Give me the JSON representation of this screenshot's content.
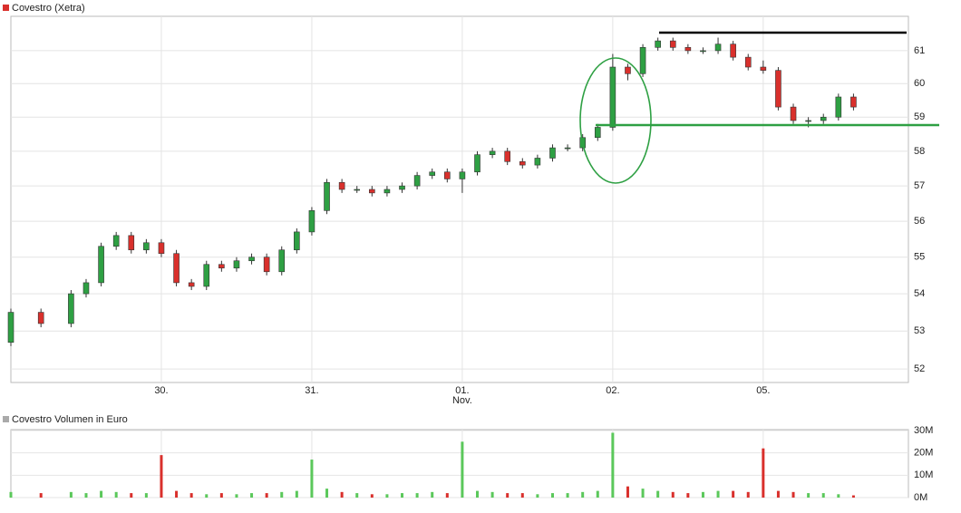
{
  "chart_data": [
    {
      "type": "candlestick",
      "title": "Covestro (Xetra)",
      "legend_color": "#d9302c",
      "up_color": "#2ea043",
      "down_color": "#d9302c",
      "log": true,
      "grid": true,
      "x": [
        0,
        4,
        8,
        10,
        12,
        14,
        16,
        18,
        20,
        22,
        24,
        26,
        28,
        30,
        32,
        34,
        36,
        38,
        40,
        42,
        44,
        46,
        48,
        50,
        52,
        54,
        56,
        58,
        60,
        62,
        64,
        66,
        68,
        70,
        72,
        74,
        76,
        78,
        80,
        82,
        84,
        86,
        88,
        90,
        92,
        94,
        96,
        98,
        100,
        102,
        104,
        106,
        108,
        110,
        112
      ],
      "open": [
        52.7,
        53.5,
        53.2,
        54.0,
        54.3,
        55.3,
        55.6,
        55.2,
        55.4,
        55.1,
        54.3,
        54.2,
        54.8,
        54.7,
        54.9,
        55.0,
        54.6,
        55.2,
        55.7,
        56.3,
        57.1,
        56.9,
        56.9,
        56.8,
        56.9,
        57.0,
        57.3,
        57.4,
        57.2,
        57.4,
        57.9,
        58.0,
        57.7,
        57.6,
        57.8,
        58.1,
        58.1,
        58.4,
        58.7,
        60.5,
        60.3,
        61.1,
        61.3,
        61.1,
        61.0,
        61.0,
        61.2,
        60.8,
        60.5,
        60.4,
        59.3,
        58.9,
        58.9,
        59.0,
        59.6
      ],
      "high": [
        53.6,
        53.6,
        54.1,
        54.4,
        55.4,
        55.7,
        55.7,
        55.5,
        55.5,
        55.2,
        54.4,
        54.9,
        54.9,
        55.0,
        55.1,
        55.1,
        55.3,
        55.8,
        56.4,
        57.2,
        57.2,
        57.0,
        57.0,
        57.0,
        57.1,
        57.4,
        57.5,
        57.5,
        57.5,
        58.0,
        58.1,
        58.1,
        57.8,
        57.9,
        58.2,
        58.2,
        58.5,
        58.8,
        60.9,
        60.6,
        61.2,
        61.4,
        61.4,
        61.2,
        61.1,
        61.4,
        61.3,
        60.9,
        60.7,
        60.5,
        59.4,
        59.0,
        59.1,
        59.7,
        59.7
      ],
      "low": [
        52.6,
        53.1,
        53.1,
        53.9,
        54.2,
        55.2,
        55.1,
        55.1,
        55.0,
        54.2,
        54.1,
        54.1,
        54.6,
        54.6,
        54.8,
        54.5,
        54.5,
        55.1,
        55.6,
        56.2,
        56.8,
        56.8,
        56.7,
        56.7,
        56.8,
        56.9,
        57.2,
        57.1,
        56.8,
        57.3,
        57.8,
        57.6,
        57.5,
        57.5,
        57.7,
        58.0,
        58.0,
        58.3,
        58.6,
        60.1,
        60.2,
        61.0,
        61.0,
        60.9,
        60.9,
        60.9,
        60.7,
        60.4,
        60.3,
        59.2,
        58.8,
        58.7,
        58.8,
        58.9,
        59.2
      ],
      "close": [
        53.5,
        53.2,
        54.0,
        54.3,
        55.3,
        55.6,
        55.2,
        55.4,
        55.1,
        54.3,
        54.2,
        54.8,
        54.7,
        54.9,
        55.0,
        54.6,
        55.2,
        55.7,
        56.3,
        57.1,
        56.9,
        56.9,
        56.8,
        56.9,
        57.0,
        57.3,
        57.4,
        57.2,
        57.4,
        57.9,
        58.0,
        57.7,
        57.6,
        57.8,
        58.1,
        58.1,
        58.4,
        58.7,
        60.5,
        60.3,
        61.1,
        61.3,
        61.1,
        61.0,
        61.0,
        61.2,
        60.8,
        60.5,
        60.4,
        59.3,
        58.9,
        58.9,
        59.0,
        59.6,
        59.3
      ],
      "xlim": [
        0,
        119.3
      ],
      "xticks": [
        {
          "value": 20,
          "label": "30."
        },
        {
          "value": 40,
          "label": "31."
        },
        {
          "value": 60,
          "label": "01."
        },
        {
          "value": 80,
          "label": "02."
        },
        {
          "value": 100,
          "label": "05."
        }
      ],
      "month_label": "Nov.",
      "ylim": [
        51.65,
        62.06
      ],
      "yticks": [
        52,
        53,
        54,
        55,
        56,
        57,
        58,
        59,
        60,
        61
      ]
    },
    {
      "type": "volume",
      "title": "Covestro Volumen in Euro",
      "legend_color": "#aaaaaa",
      "up_color": "#5bc85b",
      "down_color": "#d9302c",
      "values": [
        2500000,
        2000000,
        2500000,
        2000000,
        3000000,
        2500000,
        2000000,
        2000000,
        19000000,
        3000000,
        2000000,
        1500000,
        2000000,
        1500000,
        2000000,
        2000000,
        2500000,
        3000000,
        17000000,
        4000000,
        2500000,
        2000000,
        1500000,
        1500000,
        2000000,
        2000000,
        2500000,
        2000000,
        25000000,
        3000000,
        2500000,
        2000000,
        2000000,
        1500000,
        2000000,
        2000000,
        2500000,
        3000000,
        29000000,
        5000000,
        4000000,
        3000000,
        2500000,
        2000000,
        2500000,
        3000000,
        3000000,
        2500000,
        22000000,
        3000000,
        2500000,
        2000000,
        2000000,
        1500000,
        1000000
      ],
      "ylim": [
        0,
        30000000
      ],
      "yticks": [
        {
          "value": 0,
          "label": "0M"
        },
        {
          "value": 10000000,
          "label": "10M"
        },
        {
          "value": 20000000,
          "label": "20M"
        },
        {
          "value": 30000000,
          "label": "30M"
        }
      ]
    }
  ]
}
